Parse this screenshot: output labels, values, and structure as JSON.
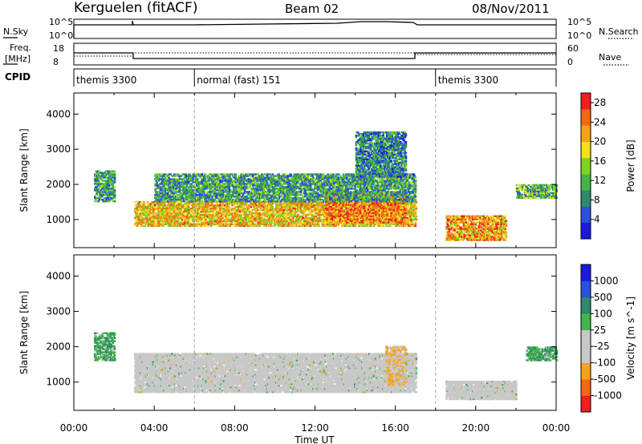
{
  "header": {
    "title": "Kerguelen (fitACF)",
    "beam": "Beam 02",
    "date": "08/Nov/2011"
  },
  "panels": {
    "nsky": {
      "label": "N.Sky",
      "right_label": "N.Search",
      "ticks_left": [
        "10^5",
        "10^0"
      ],
      "ticks_right": [
        "10^5",
        "10^0"
      ]
    },
    "freq": {
      "label_line1": "Freq.",
      "label_line2": "[MHz]",
      "right_label": "Nave",
      "ticks_left": [
        "18",
        "8"
      ],
      "ticks_right": [
        "60",
        "0"
      ]
    },
    "cpid": {
      "label": "CPID",
      "segments": [
        {
          "start": 0.0,
          "end": 6.0,
          "label": "themis 3300"
        },
        {
          "start": 6.0,
          "end": 18.0,
          "label": "normal (fast) 151"
        },
        {
          "start": 18.0,
          "end": 24.0,
          "label": "themis 3300"
        }
      ]
    }
  },
  "colors": {
    "power": [
      "#1a1adc",
      "#2a52d8",
      "#2e8a6a",
      "#43b54a",
      "#7ed321",
      "#f2e11c",
      "#f7a21a",
      "#f26a16",
      "#ee1f1f"
    ],
    "velocity": [
      "#ee2020",
      "#f26a16",
      "#f7a21a",
      "#c8c8c8",
      "#c8c8c8",
      "#43b54a",
      "#2e8a6a",
      "#2a52d8",
      "#1a1adc"
    ],
    "ground_scatter": "#c8c8c8"
  },
  "chart_data": [
    {
      "type": "heatmap",
      "name": "power",
      "ylabel": "Slant Range [km]",
      "xlabel": "Time UT",
      "xlim": [
        0,
        24
      ],
      "ylim": [
        200,
        4600
      ],
      "xticks": [
        "00:00",
        "04:00",
        "08:00",
        "12:00",
        "16:00",
        "20:00",
        "00:00"
      ],
      "yticks": [
        1000,
        2000,
        3000,
        4000
      ],
      "colorbar": {
        "label": "Power [dB]",
        "ticks": [
          4,
          8,
          12,
          16,
          20,
          24,
          28
        ],
        "range": [
          0,
          30
        ]
      },
      "regions": [
        {
          "t0": 3.0,
          "t1": 17.0,
          "r0": 800,
          "r1": 1500,
          "value": 20
        },
        {
          "t0": 12.5,
          "t1": 16.5,
          "r0": 900,
          "r1": 1800,
          "value": 24
        },
        {
          "t0": 4.0,
          "t1": 17.0,
          "r0": 1500,
          "r1": 2300,
          "value": 10
        },
        {
          "t0": 14.0,
          "t1": 16.5,
          "r0": 2200,
          "r1": 3500,
          "value": 8
        },
        {
          "t0": 1.0,
          "t1": 2.0,
          "r0": 1500,
          "r1": 2400,
          "value": 10
        },
        {
          "t0": 18.5,
          "t1": 21.5,
          "r0": 400,
          "r1": 1100,
          "value": 22
        },
        {
          "t0": 22.0,
          "t1": 24.0,
          "r0": 1600,
          "r1": 2000,
          "value": 12
        }
      ]
    },
    {
      "type": "heatmap",
      "name": "velocity",
      "ylabel": "Slant Range [km]",
      "xlabel": "Time UT",
      "xlim": [
        0,
        24
      ],
      "ylim": [
        200,
        4600
      ],
      "xticks": [
        "00:00",
        "04:00",
        "08:00",
        "12:00",
        "16:00",
        "20:00",
        "00:00"
      ],
      "yticks": [
        1000,
        2000,
        3000,
        4000
      ],
      "colorbar": {
        "label": "Velocity [m s^-1]",
        "ticks": [
          "1000",
          "500",
          "100",
          "25",
          "-25",
          "-100",
          "-500",
          "-1000"
        ]
      },
      "regions": [
        {
          "t0": 3.0,
          "t1": 17.0,
          "r0": 700,
          "r1": 1800,
          "value": 0
        },
        {
          "t0": 15.5,
          "t1": 16.5,
          "r0": 900,
          "r1": 2000,
          "value": -300
        },
        {
          "t0": 1.0,
          "t1": 2.0,
          "r0": 1600,
          "r1": 2400,
          "value": 300
        },
        {
          "t0": 22.5,
          "t1": 24.0,
          "r0": 1600,
          "r1": 2000,
          "value": 300
        },
        {
          "t0": 18.5,
          "t1": 22.0,
          "r0": 500,
          "r1": 1000,
          "value": 0
        }
      ]
    }
  ]
}
